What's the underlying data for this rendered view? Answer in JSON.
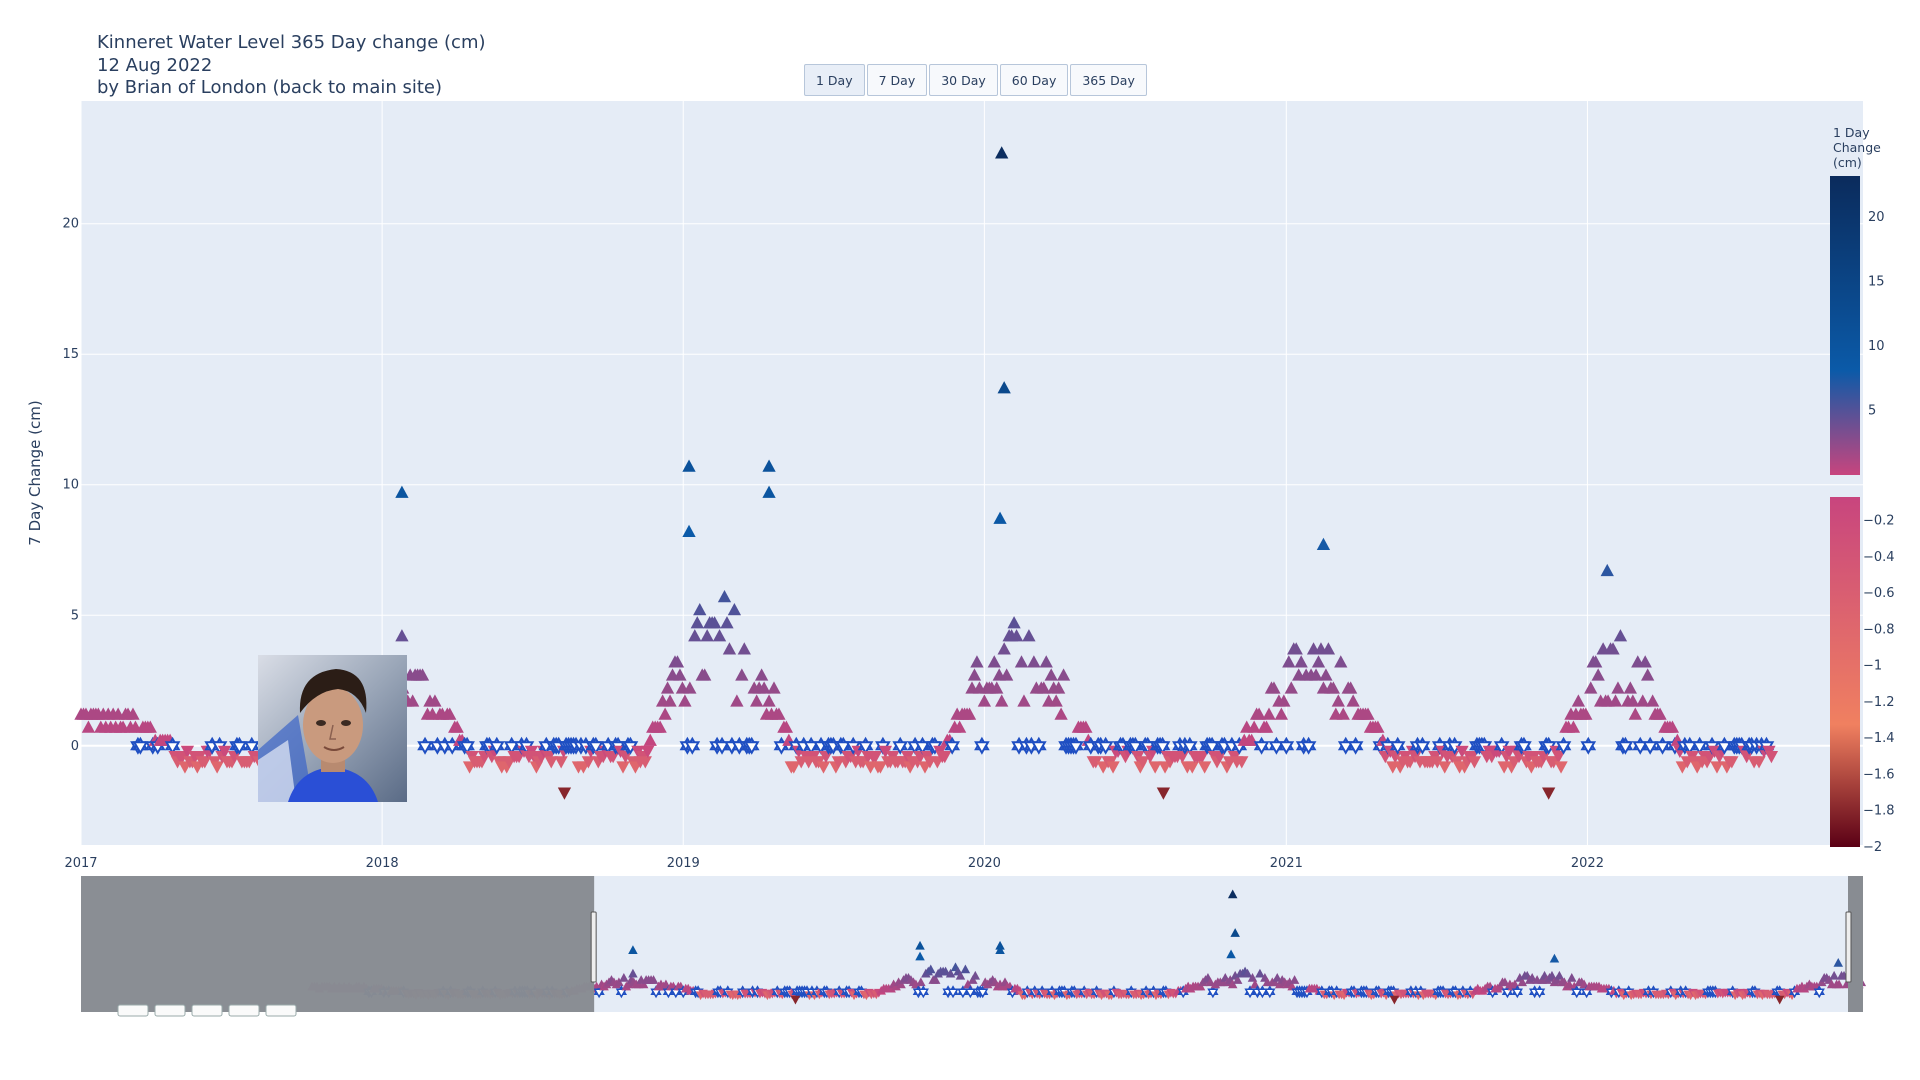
{
  "header": {
    "title_line1": "Kinneret Water Level 365 Day change (cm)",
    "title_line2": "12 Aug 2022",
    "title_line3": "by Brian of London (back to main site)"
  },
  "range_buttons": [
    "1 Day",
    "7 Day",
    "30 Day",
    "60 Day",
    "365 Day"
  ],
  "colors": {
    "plot_bg": "#e5ecf6",
    "grid": "#ffffff",
    "text": "#2a3f5f",
    "rangeslider_mask": "#888c92",
    "star_marker": "#1f4fc2"
  },
  "chart_data": {
    "type": "scatter",
    "xlabel": "",
    "ylabel": "7 Day Change (cm)",
    "x_range": [
      "2017-01-01",
      "2022-12-01"
    ],
    "y_range": [
      -3.8,
      24.7
    ],
    "x_ticks": [
      "2017",
      "2018",
      "2019",
      "2020",
      "2021",
      "2022"
    ],
    "y_ticks": [
      0,
      5,
      10,
      15,
      20
    ],
    "grid": true,
    "colorbar_positive": {
      "title": [
        "1 Day",
        "Change",
        "(cm)"
      ],
      "ticks": [
        5,
        10,
        15,
        20
      ],
      "range": [
        0,
        23.2
      ],
      "colors": [
        "#c8457e",
        "#0b5aa8",
        "#0b2b5c"
      ]
    },
    "colorbar_negative": {
      "ticks": [
        -0.2,
        -0.4,
        -0.6,
        -0.8,
        -1,
        -1.2,
        -1.4,
        -1.6,
        -1.8,
        -2
      ],
      "range": [
        -2,
        -0.1
      ],
      "colors": [
        "#5a0015",
        "#f08060",
        "#c8457e"
      ]
    },
    "highlighted_points": [
      {
        "x": "2018-01-25",
        "y": 9.7
      },
      {
        "x": "2018-01-25",
        "y": 4.2
      },
      {
        "x": "2019-01-08",
        "y": 10.7
      },
      {
        "x": "2019-01-08",
        "y": 8.2
      },
      {
        "x": "2019-04-15",
        "y": 10.7
      },
      {
        "x": "2019-04-15",
        "y": 9.7
      },
      {
        "x": "2020-01-22",
        "y": 22.7
      },
      {
        "x": "2020-01-25",
        "y": 13.7
      },
      {
        "x": "2020-01-20",
        "y": 8.7
      },
      {
        "x": "2021-02-15",
        "y": 7.7
      },
      {
        "x": "2022-01-25",
        "y": 6.7
      },
      {
        "x": "2018-08-10",
        "y": -1.8
      },
      {
        "x": "2020-08-05",
        "y": -1.8
      },
      {
        "x": "2021-11-15",
        "y": -1.8
      }
    ],
    "rangeslider_window": [
      "2018-09-15",
      "2022-12-01"
    ]
  }
}
